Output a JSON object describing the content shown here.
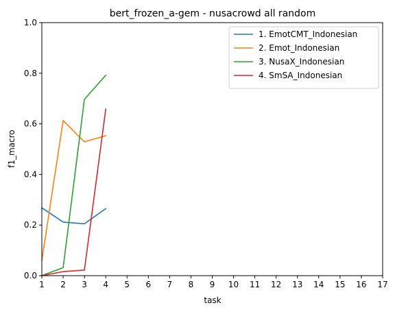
{
  "chart_data": {
    "type": "line",
    "title": "bert_frozen_a-gem - nusacrowd all random",
    "xlabel": "task",
    "ylabel": "f1_macro",
    "xlim": [
      1,
      17
    ],
    "ylim": [
      0,
      1.0
    ],
    "xticks": [
      "1",
      "2",
      "3",
      "4",
      "5",
      "6",
      "7",
      "8",
      "9",
      "10",
      "11",
      "12",
      "13",
      "14",
      "15",
      "16",
      "17"
    ],
    "yticks": [
      "0.0",
      "0.2",
      "0.4",
      "0.6",
      "0.8",
      "1.0"
    ],
    "grid": false,
    "legend_position": "top-right",
    "series": [
      {
        "name": "1. EmotCMT_Indonesian",
        "color": "#1f77b4",
        "x": [
          1,
          2,
          3,
          4
        ],
        "y": [
          0.268,
          0.212,
          0.205,
          0.265
        ]
      },
      {
        "name": "2. Emot_Indonesian",
        "color": "#ff7f0e",
        "x": [
          1,
          2,
          3,
          4
        ],
        "y": [
          0.06,
          0.613,
          0.529,
          0.553
        ]
      },
      {
        "name": "3. NusaX_Indonesian",
        "color": "#2ca02c",
        "x": [
          1,
          2,
          3,
          4
        ],
        "y": [
          0.0,
          0.032,
          0.697,
          0.792
        ]
      },
      {
        "name": "4. SmSA_Indonesian",
        "color": "#d62728",
        "x": [
          1,
          2,
          3,
          4
        ],
        "y": [
          0.0,
          0.016,
          0.022,
          0.658
        ]
      }
    ]
  }
}
